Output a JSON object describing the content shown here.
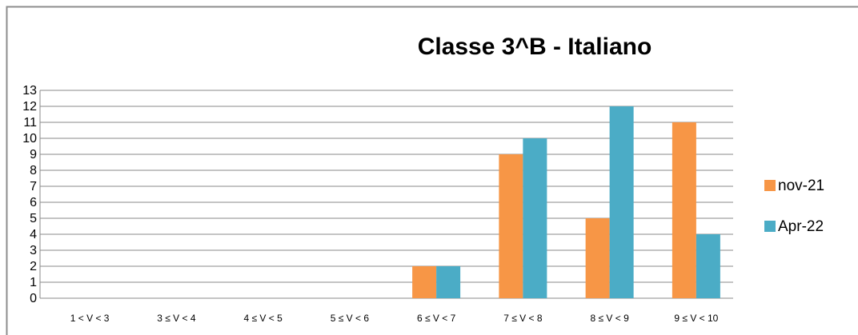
{
  "chart_data": {
    "type": "bar",
    "title": "Classe 3^B - Italiano",
    "categories": [
      "1 < V < 3",
      "3 ≤ V < 4",
      "4 ≤ V < 5",
      "5 ≤ V < 6",
      "6 ≤ V < 7",
      "7 ≤ V < 8",
      "8 ≤ V < 9",
      "9 ≤ V < 10"
    ],
    "series": [
      {
        "name": "nov-21",
        "color": "#f79646",
        "values": [
          0,
          0,
          0,
          0,
          2,
          9,
          5,
          11
        ]
      },
      {
        "name": "Apr-22",
        "color": "#4bacc6",
        "values": [
          0,
          0,
          0,
          0,
          2,
          10,
          12,
          4
        ]
      }
    ],
    "ylim": [
      0,
      13
    ],
    "yticks": [
      0,
      1,
      2,
      3,
      4,
      5,
      6,
      7,
      8,
      9,
      10,
      11,
      12,
      13
    ],
    "grid": true,
    "legend": "right"
  }
}
